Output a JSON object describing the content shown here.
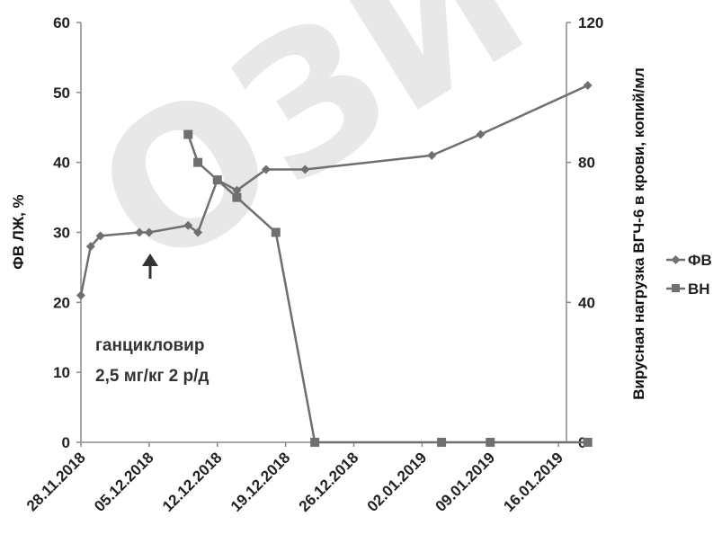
{
  "watermark": "ОЗИ",
  "chart_data": {
    "type": "line",
    "x_type": "date",
    "x_ticks": [
      "28.11.2018",
      "05.12.2018",
      "12.12.2018",
      "19.12.2018",
      "26.12.2018",
      "02.01.2019",
      "09.01.2019",
      "16.01.2019"
    ],
    "ylabel_left": "ФВ ЛЖ, %",
    "ylabel_right": "Вирусная нагрузка ВГЧ-6 в крови, копий/мл",
    "ylim_left": [
      0,
      60
    ],
    "ylim_right": [
      0,
      120
    ],
    "yticks_left": [
      "0",
      "10",
      "20",
      "30",
      "40",
      "50",
      "60"
    ],
    "yticks_right": [
      "0",
      "40",
      "80",
      "120"
    ],
    "grid": false,
    "legend_position": "right",
    "series": [
      {
        "name": "ФВ",
        "axis": "left",
        "marker": "diamond",
        "color": "#6f6f6f",
        "points": [
          {
            "x": "2018-11-28",
            "y": 21
          },
          {
            "x": "2018-11-29",
            "y": 28
          },
          {
            "x": "2018-11-30",
            "y": 29.5
          },
          {
            "x": "2018-12-04",
            "y": 30
          },
          {
            "x": "2018-12-05",
            "y": 30
          },
          {
            "x": "2018-12-09",
            "y": 31
          },
          {
            "x": "2018-12-10",
            "y": 30
          },
          {
            "x": "2018-12-12",
            "y": 37.5
          },
          {
            "x": "2018-12-14",
            "y": 36
          },
          {
            "x": "2018-12-17",
            "y": 39
          },
          {
            "x": "2018-12-21",
            "y": 39
          },
          {
            "x": "2019-01-03",
            "y": 41
          },
          {
            "x": "2019-01-08",
            "y": 44
          },
          {
            "x": "2019-01-19",
            "y": 51
          }
        ]
      },
      {
        "name": "ВН",
        "axis": "right",
        "marker": "square",
        "color": "#6f6f6f",
        "points": [
          {
            "x": "2018-12-09",
            "y": 88
          },
          {
            "x": "2018-12-10",
            "y": 80
          },
          {
            "x": "2018-12-12",
            "y": 75
          },
          {
            "x": "2018-12-14",
            "y": 70
          },
          {
            "x": "2018-12-18",
            "y": 60
          },
          {
            "x": "2018-12-22",
            "y": 0
          },
          {
            "x": "2019-01-04",
            "y": 0
          },
          {
            "x": "2019-01-09",
            "y": 0
          },
          {
            "x": "2019-01-19",
            "y": 0
          }
        ]
      }
    ],
    "annotation": {
      "arrow_at_date": "2018-12-05",
      "lines": [
        "ганцикловир",
        "2,5 мг/кг 2 р/д"
      ]
    }
  }
}
